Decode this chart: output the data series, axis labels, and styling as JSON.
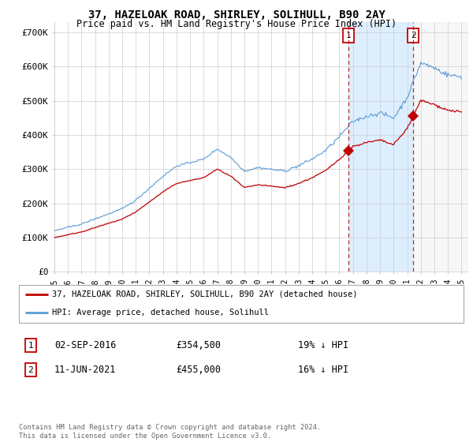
{
  "title": "37, HAZELOAK ROAD, SHIRLEY, SOLIHULL, B90 2AY",
  "subtitle": "Price paid vs. HM Land Registry's House Price Index (HPI)",
  "ylabel_ticks": [
    "£0",
    "£100K",
    "£200K",
    "£300K",
    "£400K",
    "£500K",
    "£600K",
    "£700K"
  ],
  "ytick_values": [
    0,
    100000,
    200000,
    300000,
    400000,
    500000,
    600000,
    700000
  ],
  "ylim": [
    0,
    730000
  ],
  "xlim_start": 1995.0,
  "xlim_end": 2025.5,
  "hpi_color": "#5b9bd5",
  "price_color": "#c00000",
  "shade_color": "#ddeeff",
  "point1_x": 2016.67,
  "point1_y": 354500,
  "point2_x": 2021.44,
  "point2_y": 455000,
  "legend_label1": "37, HAZELOAK ROAD, SHIRLEY, SOLIHULL, B90 2AY (detached house)",
  "legend_label2": "HPI: Average price, detached house, Solihull",
  "footer": "Contains HM Land Registry data © Crown copyright and database right 2024.\nThis data is licensed under the Open Government Licence v3.0.",
  "background_color": "#ffffff",
  "grid_color": "#cccccc"
}
